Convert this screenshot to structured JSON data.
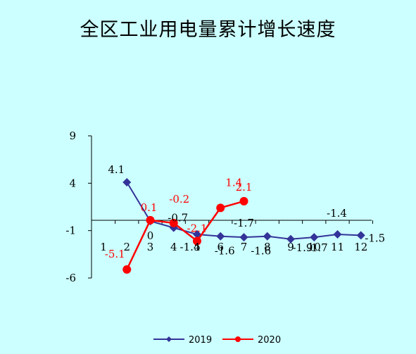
{
  "chart_data": {
    "type": "line",
    "title": "全区工业用电量累计增长速度",
    "xlabel": "",
    "ylabel": "",
    "ylim": [
      -6,
      9
    ],
    "yticks": [
      "9",
      "4",
      "-1",
      "-6"
    ],
    "categories": [
      "1",
      "2",
      "3",
      "4",
      "5",
      "6",
      "7",
      "8",
      "9",
      "10",
      "11",
      "12"
    ],
    "category_labels": [
      "1",
      "2",
      "3",
      "4",
      "5",
      "6",
      "7",
      "8",
      "9",
      "10",
      "11",
      "12"
    ],
    "grid": false,
    "legend_position": "bottom",
    "series": [
      {
        "name": "2019",
        "color": "#333399",
        "marker": "diamond",
        "values": [
          null,
          4.1,
          0,
          -0.7,
          -1.4,
          -1.6,
          -1.7,
          -1.6,
          -1.9,
          -1.7,
          -1.4,
          -1.5
        ],
        "labels": [
          null,
          "4.1",
          "0",
          "-0.7",
          "-1.4",
          "-1.6",
          "-1.7",
          "-1.6",
          "-1.9",
          "-1.7",
          "-1.4",
          "-1.5"
        ]
      },
      {
        "name": "2020",
        "color": "#ff0000",
        "marker": "circle",
        "values": [
          null,
          -5.1,
          0.1,
          -0.2,
          -2.1,
          1.4,
          2.1,
          null,
          null,
          null,
          null,
          null
        ],
        "labels": [
          null,
          "-5.1",
          "0.1",
          "-0.2",
          "-2.1",
          "1.4",
          "2.1",
          null,
          null,
          null,
          null,
          null
        ]
      }
    ]
  }
}
